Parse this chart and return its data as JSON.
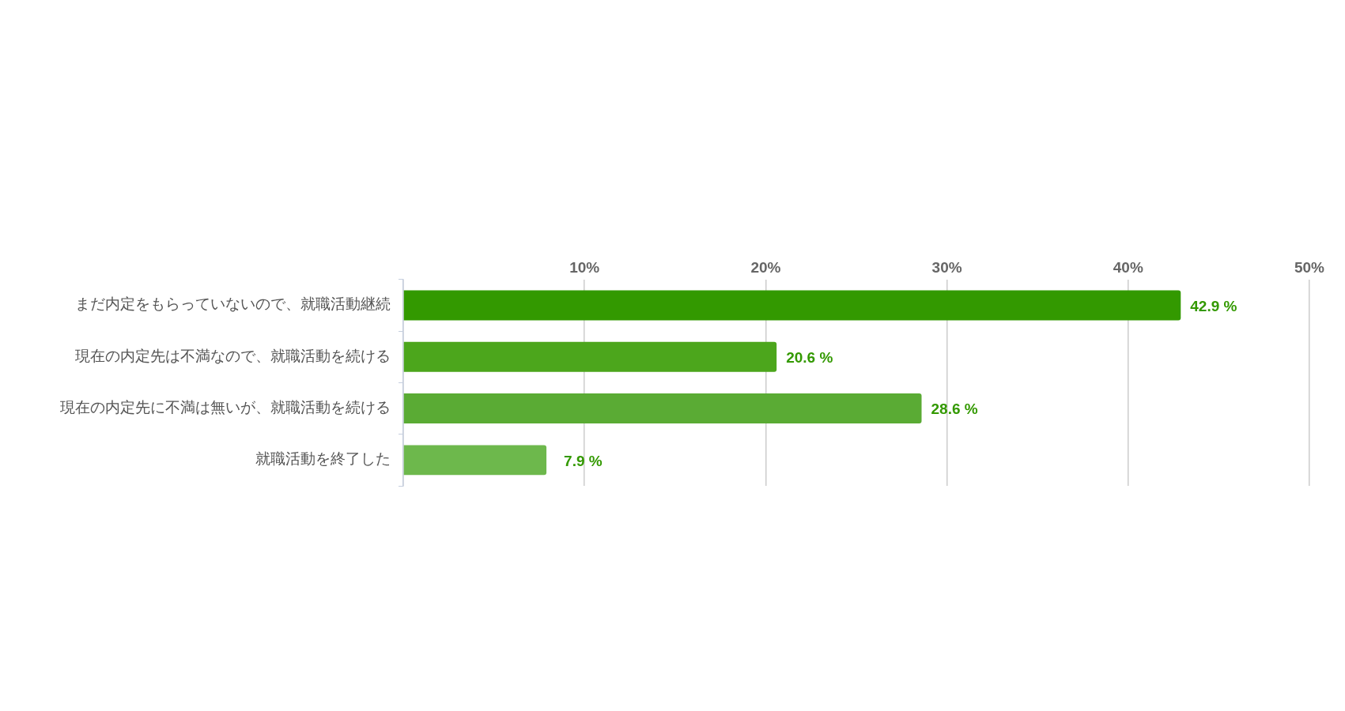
{
  "chart_data": {
    "type": "bar",
    "orientation": "horizontal",
    "categories": [
      "まだ内定をもらっていないので、就職活動継続",
      "現在の内定先は不満なので、就職活動を続ける",
      "現在の内定先に不満は無いが、就職活動を続ける",
      "就職活動を終了した"
    ],
    "values": [
      42.9,
      20.6,
      28.6,
      7.9
    ],
    "colors": [
      "#339900",
      "#4ca61c",
      "#5aab34",
      "#6db84c"
    ],
    "value_labels": [
      "42.9 %",
      "20.6 %",
      "28.6 %",
      "7.9 %"
    ],
    "xlim": [
      0,
      50
    ],
    "xticks": [
      {
        "value": 0,
        "label": null
      },
      {
        "value": 10,
        "label": "10%"
      },
      {
        "value": 20,
        "label": "20%"
      },
      {
        "value": 30,
        "label": "30%"
      },
      {
        "value": 40,
        "label": "40%"
      },
      {
        "value": 50,
        "label": "50%"
      }
    ],
    "grid": "x",
    "legend": false
  }
}
